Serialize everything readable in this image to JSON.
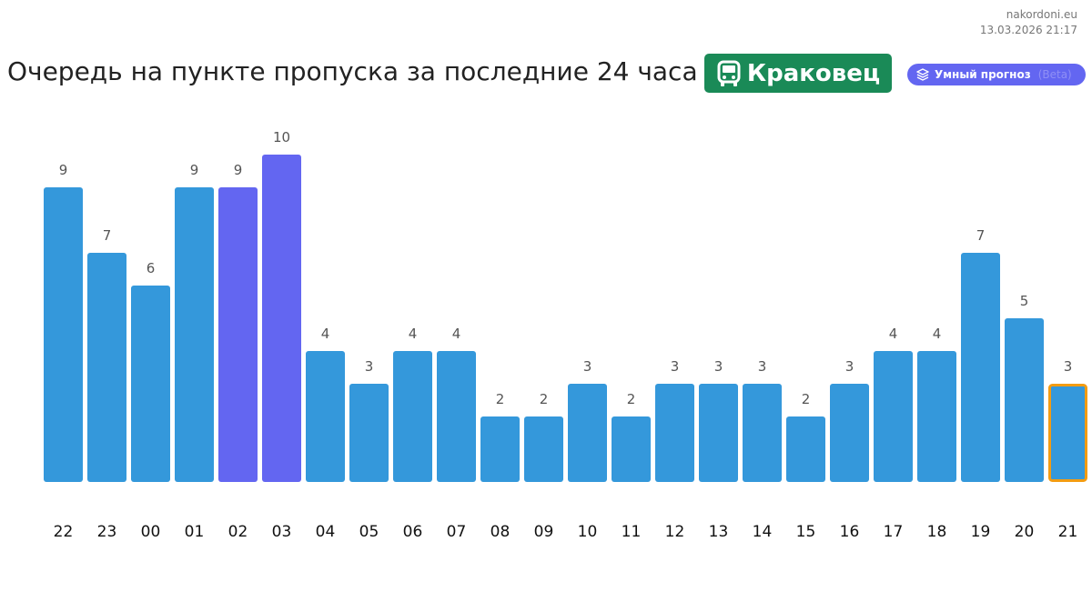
{
  "site": {
    "name": "nakordoni.eu",
    "timestamp": "13.03.2026 21:17"
  },
  "header": {
    "title": "Очередь на пункте пропуска за последние 24 часа",
    "checkpoint": "Краковец",
    "checkpoint_icon": "bus-icon",
    "checkpoint_color": "#1a8a57",
    "smart_label": "Умный прогноз",
    "smart_suffix": "(Beta)",
    "smart_icon": "layers-icon",
    "smart_color": "#6366f1"
  },
  "chart_data": {
    "type": "bar",
    "title": "",
    "xlabel": "",
    "ylabel": "",
    "categories": [
      "22",
      "23",
      "00",
      "01",
      "02",
      "03",
      "04",
      "05",
      "06",
      "07",
      "08",
      "09",
      "10",
      "11",
      "12",
      "13",
      "14",
      "15",
      "16",
      "17",
      "18",
      "19",
      "20",
      "21"
    ],
    "values": [
      9,
      7,
      6,
      9,
      9,
      10,
      4,
      3,
      4,
      4,
      2,
      2,
      3,
      2,
      3,
      3,
      3,
      2,
      3,
      4,
      4,
      7,
      5,
      3
    ],
    "bar_color": "#3498db",
    "highlight_color": "#6366f1",
    "highlight_categories": [
      "02",
      "03"
    ],
    "current_category": "21",
    "current_outline_color": "#f39c12",
    "grid": false,
    "legend": "none",
    "ylim": [
      0,
      10
    ]
  }
}
